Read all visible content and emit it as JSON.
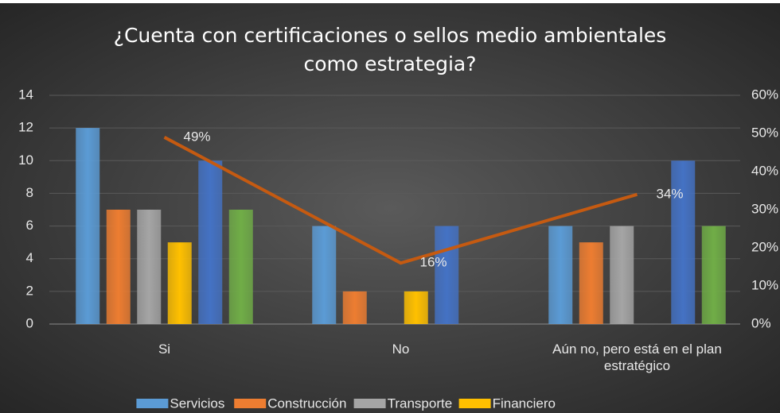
{
  "chart_data": {
    "type": "bar",
    "title": [
      "¿Cuenta con certificaciones o sellos medio ambientales",
      "como estrategia?"
    ],
    "categories": [
      "Si",
      "No",
      "Aún no, pero está en el plan estratégico"
    ],
    "series": [
      {
        "name": "Servicios",
        "color": "#5b9bd5",
        "values": [
          12,
          6,
          6
        ]
      },
      {
        "name": "Construcción",
        "color": "#ed7d31",
        "values": [
          7,
          2,
          5
        ]
      },
      {
        "name": "Transporte",
        "color": "#a5a5a5",
        "values": [
          7,
          0,
          6
        ]
      },
      {
        "name": "Financiero",
        "color": "#ffc000",
        "values": [
          5,
          2,
          0
        ]
      },
      {
        "color": "#4472c4",
        "values": [
          10,
          6,
          10
        ]
      },
      {
        "color": "#70ad47",
        "values": [
          7,
          0,
          6
        ]
      },
      {
        "type": "line",
        "axis": "y2",
        "color": "#c55a11",
        "values": [
          49,
          16,
          34
        ],
        "value_labels": [
          "49%",
          "16%",
          "34%"
        ]
      }
    ],
    "ylim": [
      0,
      14
    ],
    "yticks": [
      0,
      2,
      4,
      6,
      8,
      10,
      12,
      14
    ],
    "y2lim": [
      0,
      60
    ],
    "y2ticks": [
      {
        "value": 0,
        "label": "0%"
      },
      {
        "value": 10,
        "label": "10%"
      },
      {
        "value": 20,
        "label": "20%"
      },
      {
        "value": 30,
        "label": "30%"
      },
      {
        "value": 40,
        "label": "40%"
      },
      {
        "value": 50,
        "label": "50%"
      },
      {
        "value": 60,
        "label": "60%"
      }
    ],
    "grid": true,
    "legend": "bottom"
  }
}
